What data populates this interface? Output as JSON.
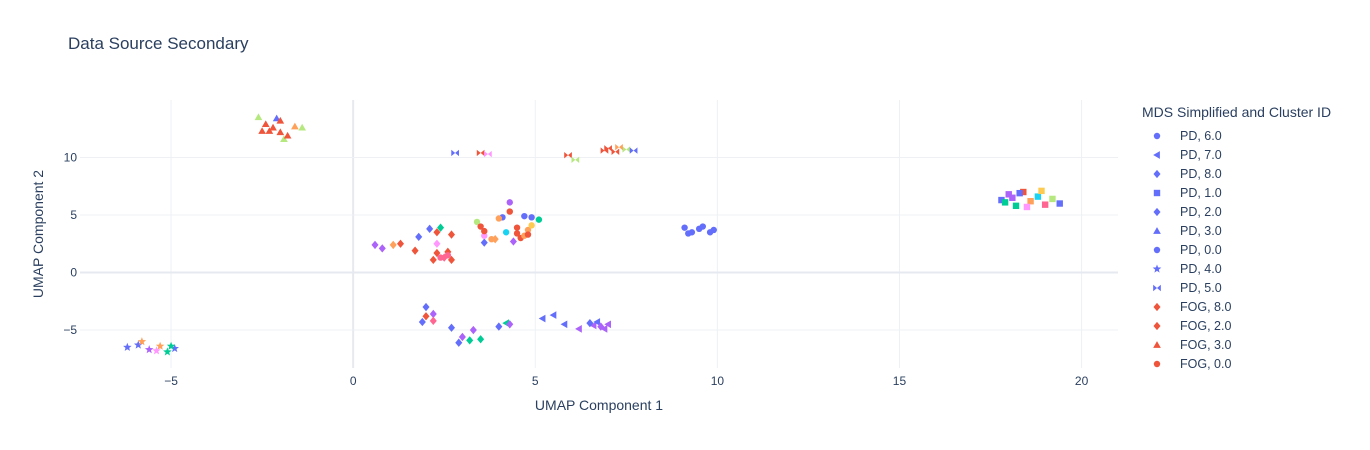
{
  "chart_data": {
    "type": "scatter",
    "title": "Data Source Secondary",
    "xlabel": "UMAP Component 1",
    "ylabel": "UMAP Component 2",
    "xlim": [
      -7.5,
      21.0
    ],
    "ylim": [
      -8.3,
      15.0
    ],
    "xticks": [
      -5,
      0,
      5,
      10,
      15,
      20
    ],
    "xtick_labels": [
      "−5",
      "0",
      "5",
      "10",
      "15",
      "20"
    ],
    "yticks": [
      -5,
      0,
      5,
      10
    ],
    "ytick_labels": [
      "−5",
      "0",
      "5",
      "10"
    ],
    "grid": true,
    "legend_title": "MDS Simplified and Cluster ID",
    "legend_placement": "right",
    "series": [
      {
        "name": "PD, 6.0",
        "symbol": "circle",
        "color": "#636efa",
        "x": [
          4.7,
          4.9,
          9.1,
          9.3,
          9.5,
          9.8,
          9.6,
          9.2,
          9.9
        ],
        "y": [
          4.9,
          4.8,
          3.9,
          3.5,
          3.8,
          3.5,
          4.0,
          3.4,
          3.7
        ]
      },
      {
        "name": "PD, 7.0",
        "symbol": "triangle-left",
        "color": "#636efa",
        "x": [
          5.2,
          5.5,
          5.8,
          6.2,
          6.6,
          6.9,
          4.2,
          6.7,
          7.0
        ],
        "y": [
          -4.0,
          -3.7,
          -4.5,
          -4.9,
          -4.6,
          -4.9,
          -4.4,
          -4.3,
          -4.5
        ],
        "colors": [
          "#636efa",
          "#636efa",
          "#636efa",
          "#ab63fa",
          "#ab63fa",
          "#ab63fa",
          "#00cc96",
          "#636efa",
          "#ab63fa"
        ]
      },
      {
        "name": "PD, 8.0",
        "symbol": "diamond",
        "color": "#636efa",
        "x": [
          2.7,
          3.0,
          3.3,
          3.5,
          4.0,
          4.3,
          6.5,
          6.8,
          2.9,
          3.2
        ],
        "y": [
          -4.8,
          -5.6,
          -5.0,
          -5.8,
          -4.7,
          -4.5,
          -4.4,
          -4.7,
          -6.1,
          -5.9
        ],
        "colors": [
          "#636efa",
          "#ab63fa",
          "#ab63fa",
          "#00cc96",
          "#636efa",
          "#ab63fa",
          "#636efa",
          "#ab63fa",
          "#636efa",
          "#00cc96"
        ]
      },
      {
        "name": "PD, 1.0",
        "symbol": "square",
        "color": "#636efa",
        "x": [
          17.8,
          18.0,
          18.2,
          18.4,
          18.6,
          18.8,
          19.0,
          19.2,
          19.4,
          18.1,
          18.5,
          18.9,
          17.9,
          18.3
        ],
        "y": [
          6.3,
          6.8,
          5.8,
          7.0,
          6.2,
          6.6,
          5.9,
          6.4,
          6.0,
          6.5,
          5.7,
          7.1,
          6.1,
          6.9
        ],
        "colors": [
          "#636efa",
          "#ab63fa",
          "#00cc96",
          "#ef553b",
          "#ffa15a",
          "#19d3f3",
          "#ff6692",
          "#b6e880",
          "#636efa",
          "#ab63fa",
          "#ff97ff",
          "#fecb52",
          "#00cc96",
          "#636efa"
        ]
      },
      {
        "name": "PD, 2.0",
        "symbol": "diamond",
        "color": "#636efa",
        "x": [
          1.8,
          2.1,
          2.0,
          2.2,
          1.9,
          2.4,
          2.3,
          3.6,
          3.9,
          4.4,
          0.6,
          0.8
        ],
        "y": [
          3.1,
          3.8,
          -3.0,
          -3.6,
          -4.3,
          3.9,
          2.5,
          2.6,
          2.9,
          2.7,
          2.4,
          2.1
        ],
        "colors": [
          "#636efa",
          "#636efa",
          "#636efa",
          "#ab63fa",
          "#636efa",
          "#00cc96",
          "#ff97ff",
          "#636efa",
          "#ffa15a",
          "#ab63fa",
          "#ab63fa",
          "#ab63fa"
        ]
      },
      {
        "name": "PD, 3.0",
        "symbol": "triangle-up",
        "color": "#636efa",
        "x": [
          -2.6,
          -2.1,
          -1.9,
          -1.6,
          -1.4,
          -2.3,
          -2.0
        ],
        "y": [
          13.5,
          13.4,
          11.6,
          12.7,
          12.6,
          12.3,
          13.2
        ],
        "colors": [
          "#b6e880",
          "#636efa",
          "#b6e880",
          "#ffa15a",
          "#b6e880",
          "#ef553b",
          "#ef553b"
        ]
      },
      {
        "name": "PD, 0.0",
        "symbol": "circle",
        "color": "#636efa",
        "x": [
          3.4,
          3.6,
          3.8,
          4.1,
          4.3,
          4.5,
          4.8,
          5.1,
          4.6,
          4.2,
          3.5,
          4.9,
          4.0
        ],
        "y": [
          4.4,
          3.2,
          2.9,
          4.8,
          6.1,
          3.4,
          3.7,
          4.6,
          3.0,
          3.5,
          4.0,
          4.1,
          4.7
        ],
        "colors": [
          "#b6e880",
          "#ff97ff",
          "#ffa15a",
          "#636efa",
          "#ab63fa",
          "#ef553b",
          "#ffa15a",
          "#00cc96",
          "#ef553b",
          "#19d3f3",
          "#ef553b",
          "#fecb52",
          "#ffa15a"
        ]
      },
      {
        "name": "PD, 4.0",
        "symbol": "star",
        "color": "#636efa",
        "x": [
          -6.2,
          -5.9,
          -5.6,
          -5.3,
          -5.1,
          -4.9,
          -5.8,
          -5.4,
          -5.0
        ],
        "y": [
          -6.5,
          -6.3,
          -6.7,
          -6.4,
          -6.9,
          -6.6,
          -6.0,
          -6.8,
          -6.4
        ],
        "colors": [
          "#636efa",
          "#636efa",
          "#ab63fa",
          "#ffa15a",
          "#00cc96",
          "#636efa",
          "#ffa15a",
          "#ff97ff",
          "#00cc96"
        ]
      },
      {
        "name": "PD, 5.0",
        "symbol": "hourglass",
        "color": "#636efa",
        "x": [
          2.8,
          3.5,
          3.7,
          5.9,
          6.1,
          6.9,
          7.2,
          7.5,
          7.7,
          7.3,
          7.0
        ],
        "y": [
          10.4,
          10.4,
          10.3,
          10.2,
          9.8,
          10.6,
          10.5,
          10.7,
          10.6,
          10.9,
          10.8
        ],
        "colors": [
          "#636efa",
          "#ef553b",
          "#ff97ff",
          "#ef553b",
          "#b6e880",
          "#ef553b",
          "#ef553b",
          "#b6e880",
          "#636efa",
          "#ffa15a",
          "#ef553b"
        ]
      },
      {
        "name": "FOG, 8.0",
        "symbol": "diamond",
        "color": "#ef553b",
        "x": [
          1.1,
          1.3,
          1.7,
          2.6,
          2.7,
          2.0,
          2.2
        ],
        "y": [
          2.4,
          2.5,
          1.9,
          1.8,
          3.3,
          -3.8,
          -4.2
        ],
        "colors": [
          "#ffa15a",
          "#ef553b",
          "#ef553b",
          "#ef553b",
          "#ef553b",
          "#ef553b",
          "#ff6692"
        ]
      },
      {
        "name": "FOG, 2.0",
        "symbol": "diamond",
        "color": "#ef553b",
        "x": [
          2.2,
          2.3,
          2.5,
          2.7,
          2.3
        ],
        "y": [
          1.1,
          1.7,
          1.3,
          1.1,
          3.5
        ],
        "colors": [
          "#ef553b",
          "#ef553b",
          "#ff6692",
          "#ef553b",
          "#ef553b"
        ]
      },
      {
        "name": "FOG, 3.0",
        "symbol": "triangle-up",
        "color": "#ef553b",
        "x": [
          -2.5,
          -2.2,
          -2.4,
          -2.0,
          -1.8
        ],
        "y": [
          12.3,
          12.6,
          12.9,
          12.2,
          11.9
        ],
        "colors": [
          "#ef553b",
          "#ef553b",
          "#ef553b",
          "#ef553b",
          "#ef553b"
        ]
      },
      {
        "name": "FOG, 0.0",
        "symbol": "circle",
        "color": "#ef553b",
        "x": [
          2.4,
          2.6,
          3.6,
          4.5,
          4.7,
          4.3,
          4.8
        ],
        "y": [
          1.3,
          1.5,
          3.6,
          3.9,
          3.2,
          5.3,
          3.3
        ],
        "colors": [
          "#ff6692",
          "#ff6692",
          "#ef553b",
          "#ef553b",
          "#ffa15a",
          "#ef553b",
          "#ef553b"
        ]
      }
    ]
  }
}
